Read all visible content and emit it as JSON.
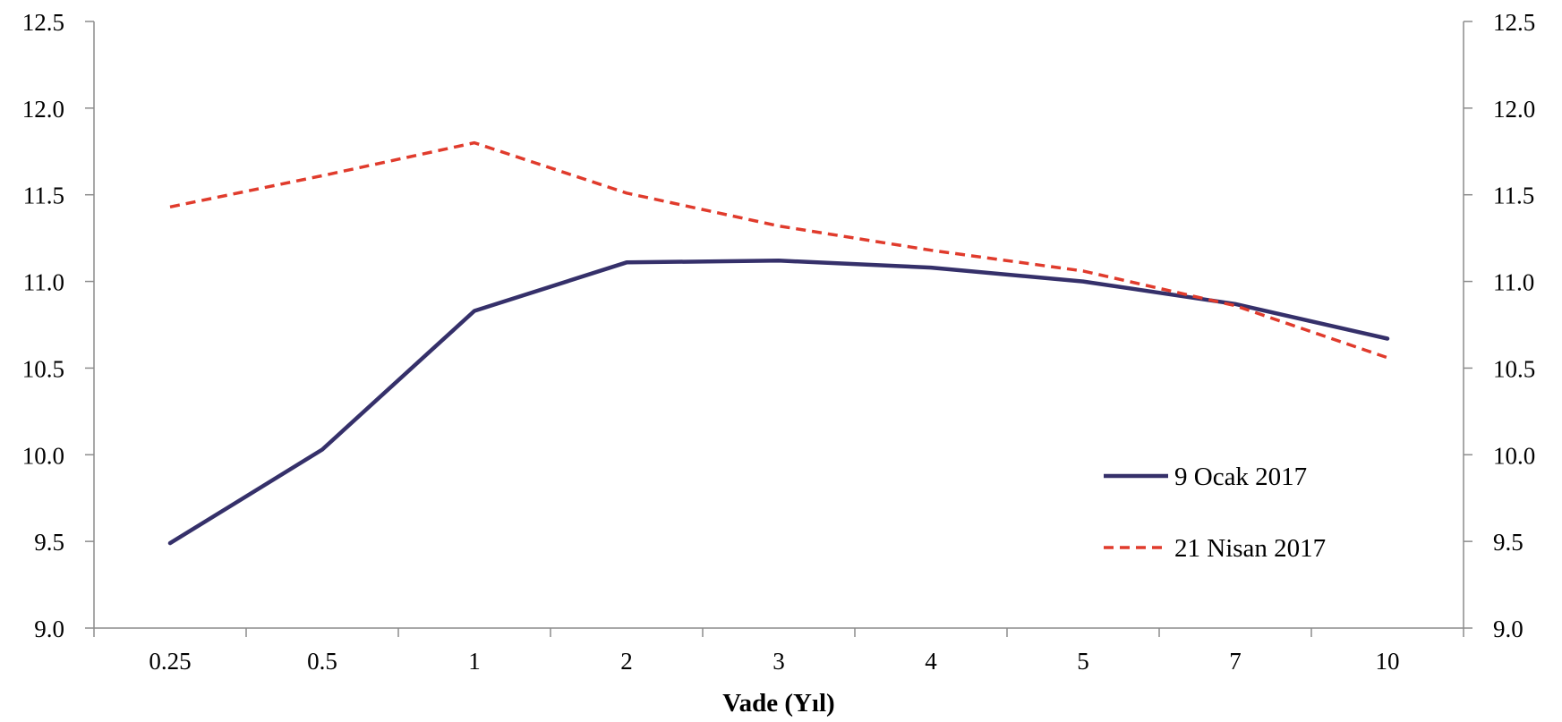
{
  "chart_data": {
    "type": "line",
    "title": "",
    "xlabel": "Vade (Yıl)",
    "ylabel": "",
    "categories": [
      "0.25",
      "0.5",
      "1",
      "2",
      "3",
      "4",
      "5",
      "7",
      "10"
    ],
    "ylim": [
      9.0,
      12.5
    ],
    "yticks": [
      "9.0",
      "9.5",
      "10.0",
      "10.5",
      "11.0",
      "11.5",
      "12.0",
      "12.5"
    ],
    "y_axis_right": true,
    "grid": false,
    "legend_position": "right-center",
    "series": [
      {
        "name": "9 Ocak 2017",
        "color": "#35306a",
        "style": "solid",
        "values": [
          9.49,
          10.03,
          10.83,
          11.11,
          11.12,
          11.08,
          11.0,
          10.87,
          10.67
        ]
      },
      {
        "name": "21 Nisan 2017",
        "color": "#e03b2c",
        "style": "dashed",
        "values": [
          11.43,
          11.61,
          11.8,
          11.51,
          11.32,
          11.18,
          11.06,
          10.86,
          10.56
        ]
      }
    ]
  }
}
